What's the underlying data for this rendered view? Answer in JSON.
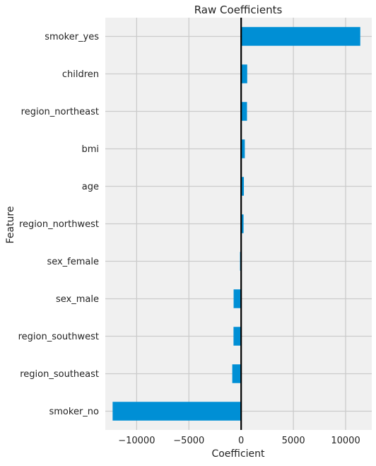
{
  "chart_data": {
    "type": "bar",
    "orientation": "horizontal",
    "title": "Raw Coefficients",
    "xlabel": "Coefficient",
    "ylabel": "Feature",
    "xlim": [
      -13000,
      12500
    ],
    "xticks": [
      -10000,
      -5000,
      0,
      5000,
      10000
    ],
    "xtick_labels": [
      "−10000",
      "−5000",
      "0",
      "5000",
      "10000"
    ],
    "grid": true,
    "zero_line": true,
    "bar_color": "#008fd5",
    "background_color": "#f0f0f0",
    "grid_color": "#cbcbcb",
    "categories": [
      "smoker_yes",
      "children",
      "region_northeast",
      "bmi",
      "age",
      "region_northwest",
      "sex_female",
      "sex_male",
      "region_southwest",
      "region_southeast",
      "smoker_no"
    ],
    "values": [
      11400,
      580,
      560,
      350,
      260,
      230,
      -110,
      -720,
      -730,
      -850,
      -12300
    ]
  }
}
